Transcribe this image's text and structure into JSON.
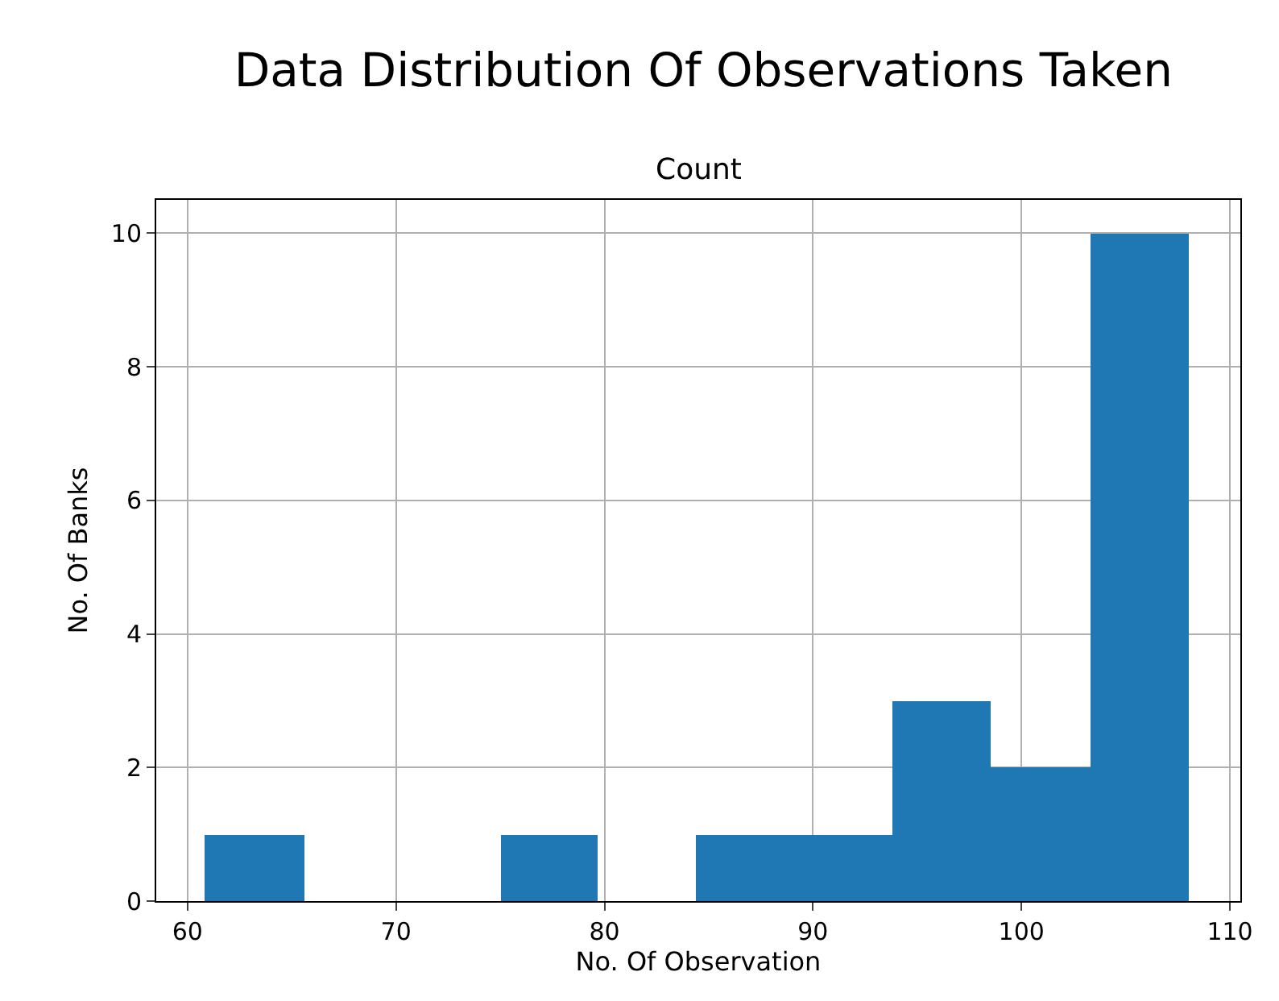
{
  "chart_data": {
    "type": "histogram",
    "title": "Data Distribution Of Observations Taken",
    "subtitle": "Count",
    "xlabel": "No. Of Observation",
    "ylabel": "No. Of Banks",
    "bins": [
      60.85,
      65.57,
      75.0,
      79.7,
      84.4,
      89.1,
      93.8,
      98.5,
      103.3,
      108.0
    ],
    "values": [
      1,
      0,
      1,
      0,
      1,
      1,
      3,
      2,
      10
    ],
    "color": "#1f77b4",
    "xlim": [
      58.5,
      110.5
    ],
    "xticks": [
      60,
      70,
      80,
      90,
      100,
      110
    ],
    "ylim": [
      0,
      10.5
    ],
    "yticks": [
      0,
      2,
      4,
      6,
      8,
      10
    ],
    "grid": true
  }
}
